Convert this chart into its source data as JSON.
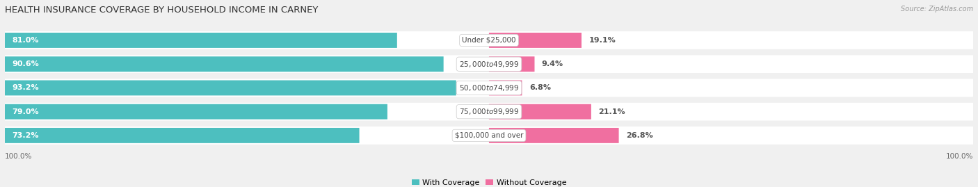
{
  "title": "HEALTH INSURANCE COVERAGE BY HOUSEHOLD INCOME IN CARNEY",
  "source": "Source: ZipAtlas.com",
  "categories": [
    "Under $25,000",
    "$25,000 to $49,999",
    "$50,000 to $74,999",
    "$75,000 to $99,999",
    "$100,000 and over"
  ],
  "with_coverage": [
    81.0,
    90.6,
    93.2,
    79.0,
    73.2
  ],
  "without_coverage": [
    19.1,
    9.4,
    6.8,
    21.1,
    26.8
  ],
  "color_with": "#4dbfbf",
  "color_with_light": "#7dd4d4",
  "color_without": "#f06fa0",
  "color_without_light": "#f5a0c0",
  "bg_color": "#f0f0f0",
  "bar_row_bg": "#e8e8e8",
  "title_fontsize": 9.5,
  "label_fontsize": 8.0,
  "tick_fontsize": 7.5,
  "bar_height": 0.62,
  "total_width": 100,
  "legend_with": "With Coverage",
  "legend_without": "Without Coverage"
}
